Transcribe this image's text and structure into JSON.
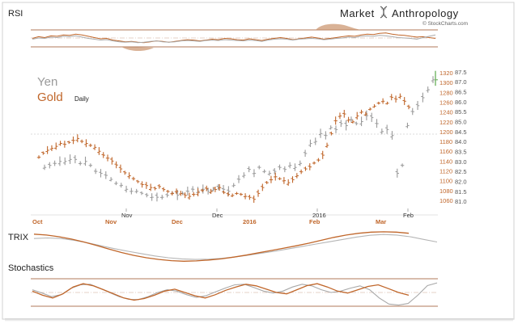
{
  "branding": {
    "name_left": "Market",
    "name_right": "Anthropology",
    "credit": "© StockCharts.com"
  },
  "labels": {
    "rsi": "RSI",
    "trix": "TRIX",
    "stochastics": "Stochastics"
  },
  "colors": {
    "gold": "#c0662a",
    "yen": "#9a9a9a",
    "accent_green": "#5aa84a",
    "panel_line": "#b07a5a"
  },
  "chart_data": {
    "type": "bar",
    "legend": [
      {
        "name": "Yen",
        "color": "#9a9a9a"
      },
      {
        "name": "Gold",
        "suffix": "Daily",
        "color": "#c0662a"
      }
    ],
    "x_tick_labels_top": [
      "Nov",
      "Dec",
      "2016",
      "Feb"
    ],
    "x_tick_labels_bottom": [
      "Oct",
      "Nov",
      "Dec",
      "2016",
      "Feb",
      "Mar"
    ],
    "gold_axis": {
      "ticks": [
        1060,
        1080,
        1100,
        1120,
        1140,
        1160,
        1180,
        1200,
        1220,
        1240,
        1260,
        1280,
        1300,
        1320
      ],
      "range": [
        1050,
        1330
      ]
    },
    "yen_axis": {
      "ticks": [
        81.0,
        81.5,
        82.0,
        82.5,
        83.0,
        83.5,
        84.0,
        84.5,
        85.0,
        85.5,
        86.0,
        86.5,
        87.0,
        87.5
      ],
      "range": [
        80.8,
        87.7
      ]
    },
    "gold_series": [
      1148,
      1156,
      1162,
      1166,
      1170,
      1176,
      1174,
      1178,
      1182,
      1186,
      1180,
      1176,
      1172,
      1168,
      1160,
      1152,
      1146,
      1140,
      1132,
      1124,
      1116,
      1110,
      1104,
      1098,
      1092,
      1090,
      1086,
      1084,
      1088,
      1082,
      1078,
      1074,
      1078,
      1074,
      1070,
      1068,
      1072,
      1076,
      1080,
      1084,
      1078,
      1082,
      1086,
      1076,
      1072,
      1070,
      1074,
      1072,
      1068,
      1066,
      1062,
      1074,
      1086,
      1096,
      1102,
      1108,
      1104,
      1100,
      1096,
      1102,
      1110,
      1118,
      1124,
      1128,
      1136,
      1142,
      1152,
      1172,
      1196,
      1222,
      1232,
      1236,
      1224,
      1220,
      1232,
      1240,
      1236,
      1246,
      1252,
      1258,
      1262,
      1258,
      1270,
      1266,
      1272,
      1262,
      1250
    ],
    "yen_series": [
      82.7,
      82.8,
      82.9,
      83.0,
      83.0,
      83.1,
      83.1,
      82.9,
      83.0,
      82.8,
      82.5,
      82.4,
      82.3,
      82.1,
      81.9,
      81.8,
      81.6,
      81.5,
      81.5,
      81.4,
      81.3,
      81.2,
      81.2,
      81.2,
      81.3,
      81.4,
      81.3,
      81.4,
      81.5,
      81.6,
      81.5,
      81.6,
      81.5,
      81.6,
      81.7,
      81.6,
      81.5,
      81.8,
      82.1,
      82.3,
      82.6,
      82.4,
      82.7,
      82.5,
      82.4,
      82.5,
      82.7,
      82.6,
      82.8,
      82.7,
      82.9,
      83.4,
      83.9,
      84.0,
      84.4,
      84.3,
      84.7,
      84.6,
      84.9,
      84.8,
      85.1,
      84.9,
      85.0,
      85.3,
      85.2,
      84.9,
      84.5,
      84.6,
      84.3,
      82.4,
      82.8,
      84.8,
      85.5,
      85.8,
      86.2,
      86.6,
      87.1
    ],
    "rsi_gold": [
      50,
      54,
      52,
      56,
      55,
      58,
      57,
      60,
      58,
      55,
      52,
      49,
      50,
      46,
      44,
      42,
      43,
      41,
      40,
      42,
      44,
      43,
      41,
      43,
      45,
      47,
      46,
      44,
      46,
      48,
      47,
      50,
      49,
      47,
      46,
      49,
      47,
      45,
      48,
      50,
      52,
      50,
      47,
      49,
      51,
      53,
      51,
      48,
      50,
      52,
      54,
      56,
      55,
      58,
      60,
      59,
      62,
      63,
      60,
      58,
      57,
      55,
      53,
      54,
      52,
      50
    ],
    "rsi_yen": [
      48,
      51,
      50,
      53,
      52,
      55,
      54,
      56,
      53,
      50,
      48,
      46,
      47,
      44,
      42,
      41,
      42,
      40,
      41,
      43,
      44,
      42,
      41,
      42,
      44,
      45,
      44,
      43,
      45,
      46,
      45,
      47,
      46,
      45,
      44,
      46,
      45,
      43,
      46,
      48,
      49,
      48,
      46,
      48,
      49,
      50,
      49,
      47,
      48,
      50,
      51,
      53,
      52,
      55,
      56,
      55,
      57,
      56,
      54,
      52,
      51,
      50,
      48,
      52,
      55,
      58
    ],
    "trix_gold": [
      0.45,
      0.42,
      0.36,
      0.28,
      0.18,
      0.06,
      -0.06,
      -0.18,
      -0.28,
      -0.36,
      -0.42,
      -0.46,
      -0.48,
      -0.47,
      -0.44,
      -0.4,
      -0.34,
      -0.27,
      -0.19,
      -0.11,
      -0.03,
      0.05,
      0.14,
      0.24,
      0.34,
      0.42,
      0.48,
      0.52,
      0.53,
      0.52,
      0.48
    ],
    "trix_yen": [
      0.3,
      0.32,
      0.3,
      0.24,
      0.15,
      0.05,
      -0.05,
      -0.14,
      -0.22,
      -0.3,
      -0.36,
      -0.4,
      -0.42,
      -0.41,
      -0.38,
      -0.33,
      -0.27,
      -0.2,
      -0.13,
      -0.05,
      0.03,
      0.11,
      0.19,
      0.27,
      0.35,
      0.41,
      0.44,
      0.42,
      0.36,
      0.27,
      0.18
    ],
    "stoch_gold": [
      55,
      40,
      30,
      45,
      70,
      82,
      74,
      60,
      45,
      30,
      22,
      28,
      40,
      55,
      62,
      50,
      38,
      30,
      42,
      58,
      70,
      80,
      74,
      62,
      50,
      45,
      60,
      75,
      82,
      70,
      55,
      48,
      60,
      72,
      78,
      64,
      50,
      40
    ],
    "stoch_yen": [
      60,
      48,
      35,
      42,
      65,
      78,
      80,
      66,
      50,
      35,
      25,
      24,
      35,
      50,
      60,
      55,
      42,
      32,
      38,
      52,
      66,
      78,
      80,
      68,
      55,
      48,
      55,
      70,
      80,
      74,
      60,
      50,
      55,
      66,
      74,
      60,
      30,
      8,
      4,
      10,
      40,
      75,
      85
    ]
  }
}
